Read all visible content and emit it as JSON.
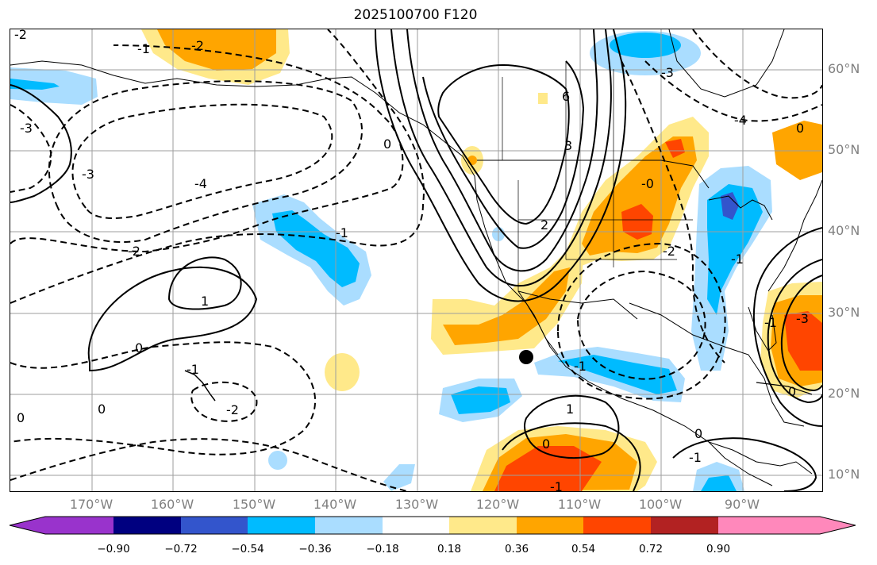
{
  "title": "2025100700 F120",
  "lat_labels": [
    "60°N",
    "50°N",
    "40°N",
    "30°N",
    "20°N",
    "10°N"
  ],
  "lon_labels": [
    "170°W",
    "160°W",
    "150°W",
    "140°W",
    "130°W",
    "120°W",
    "110°W",
    "100°W",
    "90°W"
  ],
  "contour_labels": [
    "-2",
    "-1",
    "-2",
    "-4",
    "-3",
    "-2",
    "-1",
    "0",
    "1",
    "0",
    "-1",
    "-2",
    "0",
    "3",
    "6",
    "2",
    "-0",
    "-3",
    "-4",
    "0",
    "1",
    "-1",
    "0",
    "-1",
    "0",
    "-2",
    "-1",
    "0",
    "-1",
    "-1",
    "-3",
    "-3",
    "0"
  ],
  "colorbar": {
    "ticks": [
      "−0.90",
      "−0.72",
      "−0.54",
      "−0.36",
      "−0.18",
      "0.18",
      "0.36",
      "0.54",
      "0.72",
      "0.90"
    ],
    "colors": [
      "#9933cc",
      "#000080",
      "#3355cc",
      "#00bbff",
      "#aaddff",
      "#ffffff",
      "#ffe98a",
      "#ffa500",
      "#ff4500",
      "#b22222",
      "#ff88bb"
    ]
  },
  "shading_colors": {
    "light_blue": "#aaddff",
    "blue": "#00bbff",
    "mid_blue": "#3355cc",
    "light_yellow": "#ffe98a",
    "orange": "#ffa500",
    "red_orange": "#ff4500"
  }
}
